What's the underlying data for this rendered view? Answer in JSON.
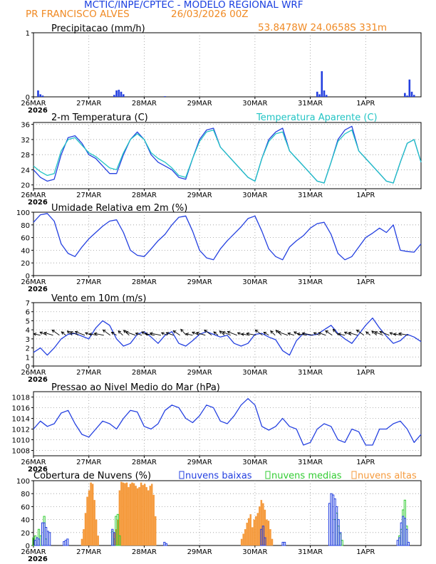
{
  "header": {
    "line1": "MCTIC/INPE/CPTEC - MODELO REGIONAL WRF",
    "location": "PR FRANCISCO ALVES",
    "run": "26/03/2026 00Z",
    "coords": "53.8478W 24.0658S 331m"
  },
  "colors": {
    "header_blue": "#1a3fe0",
    "header_orange": "#f08a24",
    "series_blue": "#2440e0",
    "series_cyan": "#22c4c4",
    "bar_green": "#33cc33",
    "bar_orange": "#f59a3c"
  },
  "x_axis": {
    "labels": [
      "26MAR",
      "27MAR",
      "28MAR",
      "29MAR",
      "30MAR",
      "31MAR",
      "1APR"
    ],
    "year_label": "2026",
    "range_hours": [
      0,
      168
    ]
  },
  "chart_data": [
    {
      "id": "precip",
      "type": "bar",
      "title": "Precipitacao (mm/h)",
      "ylim": [
        0,
        1
      ],
      "yticks": [
        0,
        1
      ],
      "x_hours": [
        2,
        3,
        4,
        35,
        36,
        37,
        38,
        39,
        57,
        123,
        124,
        125,
        126,
        127,
        161,
        162,
        163,
        164,
        165
      ],
      "values": [
        0.1,
        0.04,
        0.02,
        0.03,
        0.1,
        0.11,
        0.08,
        0.04,
        0.01,
        0.08,
        0.04,
        0.4,
        0.1,
        0.03,
        0.06,
        0.02,
        0.27,
        0.08,
        0.03
      ]
    },
    {
      "id": "temperature",
      "type": "line",
      "title": "2-m Temperatura (C)",
      "legend": "Temperatura Aparente (C)",
      "ylim": [
        19,
        36.5
      ],
      "yticks": [
        20,
        24,
        28,
        32,
        36
      ],
      "x_hours": [
        0,
        3,
        6,
        9,
        12,
        15,
        18,
        21,
        24,
        27,
        30,
        33,
        36,
        39,
        42,
        45,
        48,
        51,
        54,
        57,
        60,
        63,
        66,
        69,
        72,
        75,
        78,
        81,
        84,
        87,
        90,
        93,
        96,
        99,
        102,
        105,
        108,
        111,
        114,
        117,
        120,
        123,
        126,
        129,
        132,
        135,
        138,
        141,
        144,
        147,
        150,
        153,
        156,
        159,
        162,
        165,
        168
      ],
      "series": [
        {
          "name": "Temperatura (C)",
          "values": [
            24,
            22,
            21,
            21.5,
            28,
            32.5,
            33,
            31,
            28,
            27,
            25,
            23,
            23,
            28,
            32,
            34,
            32,
            28,
            26,
            25,
            24,
            22,
            21.5,
            27,
            32,
            34.5,
            35,
            30,
            28,
            26,
            24,
            22,
            21,
            27,
            32,
            34,
            35,
            29,
            27,
            25,
            23,
            21,
            20.5,
            26,
            32,
            34.5,
            35.5,
            29,
            27,
            25,
            23,
            21,
            20.5,
            26,
            31,
            32,
            26
          ]
        },
        {
          "name": "Temperatura Aparente (C)",
          "values": [
            25,
            23.5,
            22.5,
            23,
            29,
            32,
            32.5,
            30.5,
            28.5,
            27.5,
            26,
            24.5,
            24,
            28.5,
            32,
            33.5,
            32,
            28.5,
            27,
            26,
            24.5,
            22.5,
            22,
            27,
            31.5,
            34,
            34.5,
            30,
            28,
            26,
            24,
            22,
            21,
            27,
            31.5,
            33.5,
            34,
            29,
            27,
            25,
            23,
            21,
            20.5,
            26,
            31.5,
            33.5,
            34.5,
            29,
            27,
            25,
            23,
            21,
            20.5,
            26,
            31,
            32,
            26
          ]
        }
      ]
    },
    {
      "id": "humidity",
      "type": "line",
      "title": "Umidade Relativa em 2m (%)",
      "ylim": [
        0,
        100
      ],
      "yticks": [
        0,
        20,
        40,
        60,
        80,
        100
      ],
      "x_hours": [
        0,
        3,
        6,
        9,
        12,
        15,
        18,
        21,
        24,
        27,
        30,
        33,
        36,
        39,
        42,
        45,
        48,
        51,
        54,
        57,
        60,
        63,
        66,
        69,
        72,
        75,
        78,
        81,
        84,
        87,
        90,
        93,
        96,
        99,
        102,
        105,
        108,
        111,
        114,
        117,
        120,
        123,
        126,
        129,
        132,
        135,
        138,
        141,
        144,
        147,
        150,
        153,
        156,
        159,
        162,
        165,
        168
      ],
      "series": [
        {
          "name": "Umidade Relativa",
          "values": [
            84,
            96,
            98,
            86,
            50,
            35,
            30,
            45,
            58,
            68,
            78,
            86,
            88,
            68,
            40,
            32,
            30,
            42,
            55,
            65,
            80,
            92,
            94,
            70,
            40,
            28,
            25,
            42,
            55,
            66,
            77,
            90,
            94,
            70,
            42,
            30,
            25,
            45,
            55,
            63,
            75,
            82,
            84,
            65,
            35,
            25,
            30,
            45,
            60,
            67,
            75,
            68,
            80,
            40,
            38,
            37,
            50
          ]
        }
      ]
    },
    {
      "id": "wind",
      "type": "line",
      "title": "Vento em 10m (m/s)",
      "ylim": [
        0,
        7
      ],
      "yticks": [
        0,
        1,
        2,
        3,
        4,
        5,
        6,
        7
      ],
      "x_hours": [
        0,
        3,
        6,
        9,
        12,
        15,
        18,
        21,
        24,
        27,
        30,
        33,
        36,
        39,
        42,
        45,
        48,
        51,
        54,
        57,
        60,
        63,
        66,
        69,
        72,
        75,
        78,
        81,
        84,
        87,
        90,
        93,
        96,
        99,
        102,
        105,
        108,
        111,
        114,
        117,
        120,
        123,
        126,
        129,
        132,
        135,
        138,
        141,
        144,
        147,
        150,
        153,
        156,
        159,
        162,
        165,
        168
      ],
      "series": [
        {
          "name": "Velocidade",
          "values": [
            1.5,
            2,
            1.2,
            2,
            3,
            3.5,
            3.6,
            3.3,
            3,
            4.2,
            5,
            4.5,
            3,
            2.2,
            2.5,
            3.5,
            3.8,
            3.2,
            2.5,
            3.4,
            3.8,
            2.5,
            2.2,
            2.8,
            3.5,
            3.8,
            3.5,
            3.2,
            3.4,
            2.5,
            2.2,
            2.5,
            3.5,
            3.6,
            3.2,
            2.9,
            1.7,
            1.2,
            2.8,
            3.6,
            3.4,
            3.5,
            4,
            4.5,
            3.6,
            3,
            2.5,
            3.5,
            4.5,
            5.3,
            4.2,
            3.3,
            2.5,
            2.8,
            3.5,
            3.2,
            2.7
          ]
        }
      ]
    },
    {
      "id": "pressure",
      "type": "line",
      "title": "Pressao ao Nivel Medio do Mar (hPa)",
      "ylim": [
        1007,
        1019
      ],
      "yticks": [
        1008,
        1010,
        1012,
        1014,
        1016,
        1018
      ],
      "x_hours": [
        0,
        3,
        6,
        9,
        12,
        15,
        18,
        21,
        24,
        27,
        30,
        33,
        36,
        39,
        42,
        45,
        48,
        51,
        54,
        57,
        60,
        63,
        66,
        69,
        72,
        75,
        78,
        81,
        84,
        87,
        90,
        93,
        96,
        99,
        102,
        105,
        108,
        111,
        114,
        117,
        120,
        123,
        126,
        129,
        132,
        135,
        138,
        141,
        144,
        147,
        150,
        153,
        156,
        159,
        162,
        165,
        168
      ],
      "series": [
        {
          "name": "Pressao",
          "values": [
            1012,
            1013.5,
            1012.5,
            1013,
            1015,
            1015.5,
            1013,
            1011,
            1010.5,
            1012,
            1013.5,
            1013,
            1012,
            1014,
            1015.5,
            1015.2,
            1012.5,
            1012,
            1013,
            1015.5,
            1016.5,
            1016,
            1014,
            1013.2,
            1014.5,
            1016.5,
            1016,
            1013.5,
            1013,
            1014.5,
            1016.5,
            1017.7,
            1016.5,
            1012.5,
            1011.8,
            1012.5,
            1014,
            1012.5,
            1012,
            1009,
            1009.5,
            1012,
            1013,
            1012.5,
            1010,
            1009.5,
            1012,
            1011.5,
            1009,
            1009,
            1012,
            1012,
            1013,
            1013.5,
            1012,
            1009.5,
            1011
          ]
        }
      ]
    },
    {
      "id": "clouds",
      "type": "bar",
      "title": "Cobertura de Nuvens (%)",
      "legend": [
        "nuvens baixas",
        "nuvens medias",
        "nuvens altas"
      ],
      "ylim": [
        0,
        100
      ],
      "yticks": [
        0,
        20,
        40,
        60,
        80,
        100
      ],
      "series": [
        {
          "name": "nuvens baixas",
          "bars": [
            [
              1,
              8
            ],
            [
              2,
              12
            ],
            [
              3,
              10
            ],
            [
              5,
              35
            ],
            [
              6,
              35
            ],
            [
              7,
              28
            ],
            [
              8,
              22
            ],
            [
              9,
              20
            ],
            [
              17,
              6
            ],
            [
              18,
              8
            ],
            [
              19,
              10
            ],
            [
              44,
              25
            ],
            [
              45,
              20
            ],
            [
              73,
              5
            ],
            [
              74,
              3
            ],
            [
              127,
              25
            ],
            [
              128,
              30
            ],
            [
              129,
              12
            ],
            [
              139,
              5
            ],
            [
              140,
              5
            ],
            [
              165,
              65
            ],
            [
              166,
              80
            ],
            [
              167,
              78
            ],
            [
              168,
              72
            ],
            [
              169,
              60
            ],
            [
              170,
              40
            ],
            [
              171,
              20
            ],
            [
              203,
              8
            ],
            [
              204,
              12
            ],
            [
              205,
              35
            ],
            [
              206,
              45
            ],
            [
              207,
              42
            ],
            [
              208,
              25
            ],
            [
              209,
              5
            ]
          ]
        },
        {
          "name": "nuvens medias",
          "bars": [
            [
              0,
              12
            ],
            [
              1,
              15
            ],
            [
              3,
              25
            ],
            [
              4,
              15
            ],
            [
              6,
              45
            ],
            [
              7,
              10
            ],
            [
              44,
              22
            ],
            [
              45,
              10
            ],
            [
              46,
              45
            ],
            [
              47,
              48
            ],
            [
              48,
              15
            ],
            [
              168,
              40
            ],
            [
              169,
              50
            ],
            [
              170,
              30
            ],
            [
              171,
              18
            ],
            [
              172,
              8
            ],
            [
              204,
              15
            ],
            [
              205,
              25
            ],
            [
              206,
              55
            ],
            [
              207,
              70
            ],
            [
              208,
              30
            ]
          ]
        },
        {
          "name": "nuvens altas",
          "bars": [
            [
              27,
              10
            ],
            [
              28,
              25
            ],
            [
              29,
              50
            ],
            [
              30,
              75
            ],
            [
              31,
              85
            ],
            [
              32,
              97
            ],
            [
              33,
              95
            ],
            [
              34,
              70
            ],
            [
              35,
              40
            ],
            [
              36,
              15
            ],
            [
              45,
              20
            ],
            [
              46,
              25
            ],
            [
              47,
              40
            ],
            [
              48,
              85
            ],
            [
              49,
              98
            ],
            [
              50,
              97
            ],
            [
              51,
              96
            ],
            [
              52,
              97
            ],
            [
              53,
              90
            ],
            [
              54,
              95
            ],
            [
              55,
              97
            ],
            [
              56,
              96
            ],
            [
              57,
              92
            ],
            [
              58,
              88
            ],
            [
              59,
              90
            ],
            [
              60,
              97
            ],
            [
              61,
              93
            ],
            [
              62,
              95
            ],
            [
              63,
              90
            ],
            [
              64,
              85
            ],
            [
              65,
              92
            ],
            [
              66,
              95
            ],
            [
              67,
              78
            ],
            [
              68,
              45
            ],
            [
              116,
              10
            ],
            [
              117,
              18
            ],
            [
              118,
              25
            ],
            [
              119,
              35
            ],
            [
              120,
              42
            ],
            [
              121,
              48
            ],
            [
              122,
              28
            ],
            [
              123,
              40
            ],
            [
              124,
              45
            ],
            [
              125,
              50
            ],
            [
              126,
              60
            ],
            [
              127,
              70
            ],
            [
              128,
              65
            ],
            [
              129,
              55
            ],
            [
              130,
              40
            ],
            [
              131,
              38
            ],
            [
              132,
              25
            ],
            [
              133,
              10
            ]
          ]
        }
      ]
    }
  ]
}
